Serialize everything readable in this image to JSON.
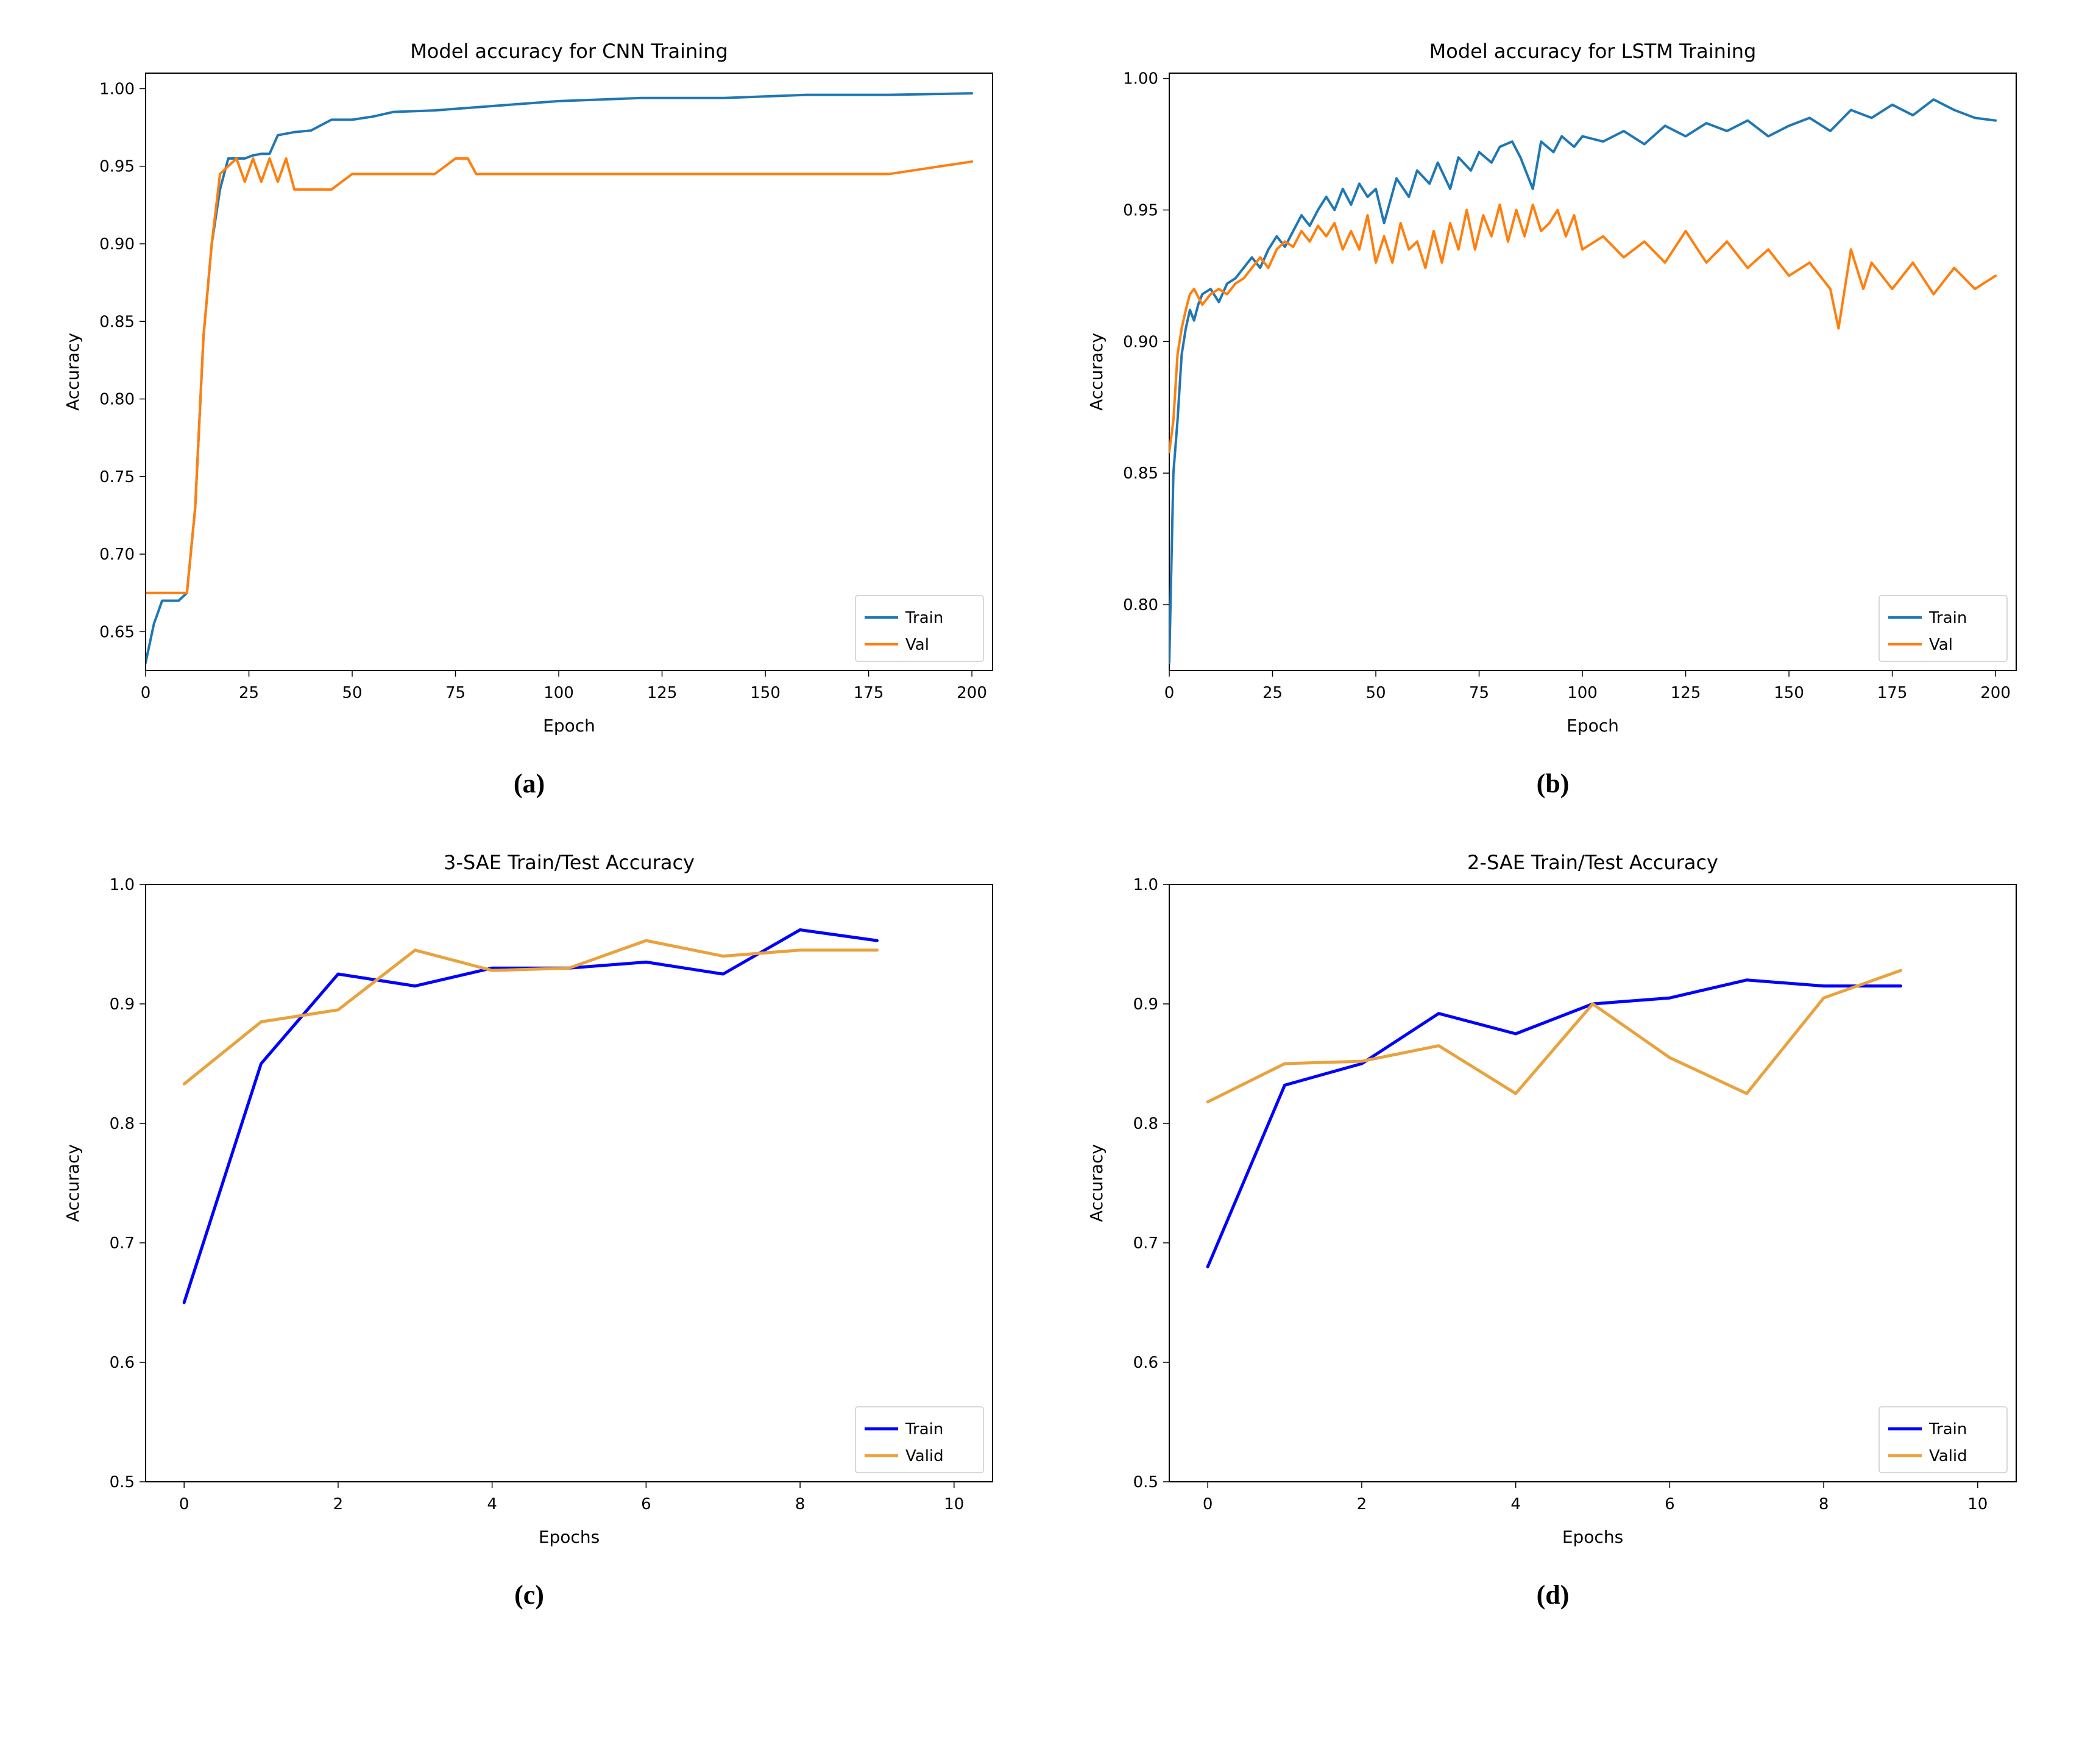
{
  "layout": {
    "rows": 2,
    "cols": 2,
    "panel_labels": [
      "(a)",
      "(b)",
      "(c)",
      "(d)"
    ],
    "panel_label_font": "serif-bold",
    "panel_label_fontsize": 44
  },
  "common": {
    "background_color": "#ffffff",
    "axis_color": "#000000",
    "tick_fontsize": 26,
    "label_fontsize": 28,
    "title_fontsize": 32,
    "legend_fontsize": 26,
    "legend_border_color": "#cccccc"
  },
  "charts": [
    {
      "id": "a",
      "type": "line",
      "title": "Model accuracy for CNN Training",
      "xlabel": "Epoch",
      "ylabel": "Accuracy",
      "xlim": [
        0,
        205
      ],
      "ylim": [
        0.625,
        1.01
      ],
      "xticks": [
        0,
        25,
        50,
        75,
        100,
        125,
        150,
        175,
        200
      ],
      "yticks": [
        0.65,
        0.7,
        0.75,
        0.8,
        0.85,
        0.9,
        0.95,
        1.0
      ],
      "ytick_format": "0.00",
      "line_width": 4,
      "legend": {
        "position": "lower-right",
        "labels": [
          "Train",
          "Val"
        ]
      },
      "series": [
        {
          "name": "Train",
          "color": "#1f77b4",
          "x": [
            0,
            2,
            4,
            6,
            8,
            10,
            12,
            14,
            16,
            18,
            20,
            22,
            24,
            26,
            28,
            30,
            32,
            36,
            40,
            45,
            50,
            55,
            60,
            70,
            80,
            90,
            100,
            120,
            140,
            160,
            180,
            200
          ],
          "y": [
            0.63,
            0.655,
            0.67,
            0.67,
            0.67,
            0.675,
            0.73,
            0.84,
            0.9,
            0.935,
            0.955,
            0.955,
            0.955,
            0.957,
            0.958,
            0.958,
            0.97,
            0.972,
            0.973,
            0.98,
            0.98,
            0.982,
            0.985,
            0.986,
            0.988,
            0.99,
            0.992,
            0.994,
            0.994,
            0.996,
            0.996,
            0.997
          ]
        },
        {
          "name": "Val",
          "color": "#ff7f0e",
          "x": [
            0,
            2,
            4,
            6,
            8,
            10,
            12,
            14,
            16,
            18,
            20,
            22,
            24,
            26,
            28,
            30,
            32,
            34,
            36,
            38,
            40,
            45,
            50,
            55,
            60,
            65,
            70,
            75,
            78,
            80,
            90,
            100,
            120,
            140,
            160,
            180,
            200
          ],
          "y": [
            0.675,
            0.675,
            0.675,
            0.675,
            0.675,
            0.675,
            0.73,
            0.84,
            0.9,
            0.945,
            0.95,
            0.955,
            0.94,
            0.955,
            0.94,
            0.955,
            0.94,
            0.955,
            0.935,
            0.935,
            0.935,
            0.935,
            0.945,
            0.945,
            0.945,
            0.945,
            0.945,
            0.955,
            0.955,
            0.945,
            0.945,
            0.945,
            0.945,
            0.945,
            0.945,
            0.945,
            0.953
          ]
        }
      ]
    },
    {
      "id": "b",
      "type": "line",
      "title": "Model accuracy for LSTM Training",
      "xlabel": "Epoch",
      "ylabel": "Accuracy",
      "xlim": [
        0,
        205
      ],
      "ylim": [
        0.775,
        1.002
      ],
      "xticks": [
        0,
        25,
        50,
        75,
        100,
        125,
        150,
        175,
        200
      ],
      "yticks": [
        0.8,
        0.85,
        0.9,
        0.95,
        1.0
      ],
      "ytick_format": "0.00",
      "line_width": 4,
      "legend": {
        "position": "lower-right",
        "labels": [
          "Train",
          "Val"
        ]
      },
      "series": [
        {
          "name": "Train",
          "color": "#1f77b4",
          "x": [
            0,
            1,
            2,
            3,
            4,
            5,
            6,
            7,
            8,
            10,
            12,
            14,
            16,
            18,
            20,
            22,
            24,
            26,
            28,
            30,
            32,
            34,
            36,
            38,
            40,
            42,
            44,
            46,
            48,
            50,
            52,
            55,
            58,
            60,
            63,
            65,
            68,
            70,
            73,
            75,
            78,
            80,
            83,
            85,
            88,
            90,
            93,
            95,
            98,
            100,
            105,
            110,
            115,
            120,
            125,
            130,
            135,
            140,
            145,
            150,
            155,
            160,
            165,
            170,
            175,
            180,
            185,
            190,
            195,
            200
          ],
          "y": [
            0.778,
            0.85,
            0.87,
            0.895,
            0.905,
            0.912,
            0.908,
            0.914,
            0.918,
            0.92,
            0.915,
            0.922,
            0.924,
            0.928,
            0.932,
            0.928,
            0.935,
            0.94,
            0.936,
            0.942,
            0.948,
            0.944,
            0.95,
            0.955,
            0.95,
            0.958,
            0.952,
            0.96,
            0.955,
            0.958,
            0.945,
            0.962,
            0.955,
            0.965,
            0.96,
            0.968,
            0.958,
            0.97,
            0.965,
            0.972,
            0.968,
            0.974,
            0.976,
            0.97,
            0.958,
            0.976,
            0.972,
            0.978,
            0.974,
            0.978,
            0.976,
            0.98,
            0.975,
            0.982,
            0.978,
            0.983,
            0.98,
            0.984,
            0.978,
            0.982,
            0.985,
            0.98,
            0.988,
            0.985,
            0.99,
            0.986,
            0.992,
            0.988,
            0.985,
            0.984
          ]
        },
        {
          "name": "Val",
          "color": "#ff7f0e",
          "x": [
            0,
            1,
            2,
            3,
            4,
            5,
            6,
            8,
            10,
            12,
            14,
            16,
            18,
            20,
            22,
            24,
            26,
            28,
            30,
            32,
            34,
            36,
            38,
            40,
            42,
            44,
            46,
            48,
            50,
            52,
            54,
            56,
            58,
            60,
            62,
            64,
            66,
            68,
            70,
            72,
            74,
            76,
            78,
            80,
            82,
            84,
            86,
            88,
            90,
            92,
            94,
            96,
            98,
            100,
            105,
            110,
            115,
            120,
            125,
            130,
            135,
            140,
            145,
            150,
            155,
            160,
            162,
            165,
            168,
            170,
            175,
            180,
            185,
            190,
            195,
            200
          ],
          "y": [
            0.858,
            0.87,
            0.895,
            0.905,
            0.912,
            0.918,
            0.92,
            0.914,
            0.918,
            0.92,
            0.918,
            0.922,
            0.924,
            0.928,
            0.932,
            0.928,
            0.935,
            0.938,
            0.936,
            0.942,
            0.938,
            0.944,
            0.94,
            0.945,
            0.935,
            0.942,
            0.935,
            0.948,
            0.93,
            0.94,
            0.93,
            0.945,
            0.935,
            0.938,
            0.928,
            0.942,
            0.93,
            0.945,
            0.935,
            0.95,
            0.935,
            0.948,
            0.94,
            0.952,
            0.938,
            0.95,
            0.94,
            0.952,
            0.942,
            0.945,
            0.95,
            0.94,
            0.948,
            0.935,
            0.94,
            0.932,
            0.938,
            0.93,
            0.942,
            0.93,
            0.938,
            0.928,
            0.935,
            0.925,
            0.93,
            0.92,
            0.905,
            0.935,
            0.92,
            0.93,
            0.92,
            0.93,
            0.918,
            0.928,
            0.92,
            0.925
          ]
        }
      ]
    },
    {
      "id": "c",
      "type": "line",
      "title": "3-SAE Train/Test Accuracy",
      "xlabel": "Epochs",
      "ylabel": "Accuracy",
      "xlim": [
        -0.5,
        10.5
      ],
      "ylim": [
        0.5,
        1.0
      ],
      "xticks": [
        0,
        2,
        4,
        6,
        8,
        10
      ],
      "yticks": [
        0.5,
        0.6,
        0.7,
        0.8,
        0.9,
        1.0
      ],
      "ytick_format": "0.0",
      "line_width": 5,
      "legend": {
        "position": "lower-right",
        "labels": [
          "Train",
          "Valid"
        ]
      },
      "series": [
        {
          "name": "Train",
          "color": "#0000ff",
          "x": [
            0,
            1,
            2,
            3,
            4,
            5,
            6,
            7,
            8,
            9
          ],
          "y": [
            0.65,
            0.85,
            0.925,
            0.915,
            0.93,
            0.93,
            0.935,
            0.925,
            0.962,
            0.953
          ]
        },
        {
          "name": "Valid",
          "color": "#e8a33d",
          "x": [
            0,
            1,
            2,
            3,
            4,
            5,
            6,
            7,
            8,
            9
          ],
          "y": [
            0.833,
            0.885,
            0.895,
            0.945,
            0.928,
            0.93,
            0.953,
            0.94,
            0.945,
            0.945
          ]
        }
      ]
    },
    {
      "id": "d",
      "type": "line",
      "title": "2-SAE Train/Test Accuracy",
      "xlabel": "Epochs",
      "ylabel": "Accuracy",
      "xlim": [
        -0.5,
        10.5
      ],
      "ylim": [
        0.5,
        1.0
      ],
      "xticks": [
        0,
        2,
        4,
        6,
        8,
        10
      ],
      "yticks": [
        0.5,
        0.6,
        0.7,
        0.8,
        0.9,
        1.0
      ],
      "ytick_format": "0.0",
      "line_width": 5,
      "legend": {
        "position": "lower-right",
        "labels": [
          "Train",
          "Valid"
        ]
      },
      "series": [
        {
          "name": "Train",
          "color": "#0000ff",
          "x": [
            0,
            1,
            2,
            3,
            4,
            5,
            6,
            7,
            8,
            9
          ],
          "y": [
            0.68,
            0.832,
            0.85,
            0.892,
            0.875,
            0.9,
            0.905,
            0.92,
            0.915,
            0.915
          ]
        },
        {
          "name": "Valid",
          "color": "#e8a33d",
          "x": [
            0,
            1,
            2,
            3,
            4,
            5,
            6,
            7,
            8,
            9
          ],
          "y": [
            0.818,
            0.85,
            0.852,
            0.865,
            0.825,
            0.9,
            0.855,
            0.825,
            0.905,
            0.928
          ]
        }
      ]
    }
  ]
}
